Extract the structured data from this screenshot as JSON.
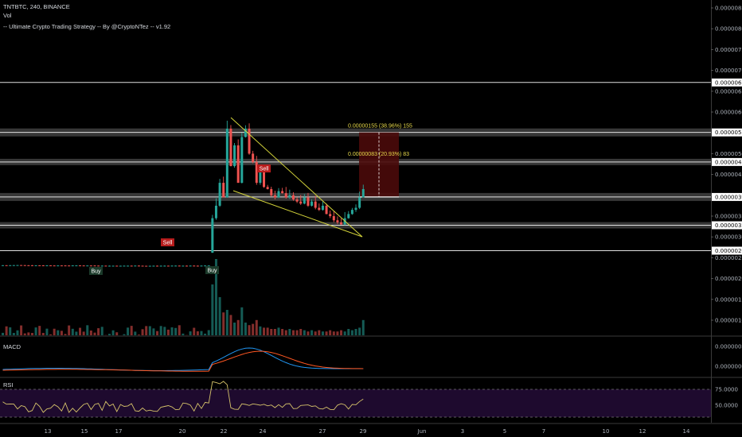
{
  "header": {
    "symbol_line": "TNTBTC, 240, BINANCE",
    "vol_label": "Vol",
    "strategy_line": "-- Ultimate Crypto Trading Strategy -- By @CryptoNTez -- v1.92"
  },
  "panels": {
    "macd_label": "MACD",
    "rsi_label": "RSI"
  },
  "colors": {
    "background": "#000000",
    "up": "#26a69a",
    "down": "#ef5350",
    "wedge": "#d4d43a",
    "macd": "#2196f3",
    "signal": "#ff5722",
    "rsi": "#d6c36a",
    "rsi_band": "#1e0a2e",
    "sr_zone": "#4a4a4a",
    "target_box": "#4a0a0a"
  },
  "chart_data": [
    {
      "type": "candlestick",
      "x_tick_labels": [
        "13",
        "15",
        "17",
        "20",
        "22",
        "24",
        "27",
        "29",
        "Jun",
        "3",
        "5",
        "7",
        "10",
        "12",
        "14"
      ],
      "y_tick_labels": [
        "0.00000850",
        "0.00000800",
        "0.00000750",
        "0.00000700",
        "0.00000650",
        "0.00000600",
        "0.00000550",
        "0.00000500",
        "0.00000450",
        "0.00000400",
        "0.00000350",
        "0.00000300",
        "0.00000250",
        "0.00000200",
        "0.00000150",
        "0.00000100"
      ],
      "ylim": [
        7.8e-07,
        8.7e-06
      ],
      "horizontal_levels": [
        {
          "label": "0.00000671",
          "value": 6.71e-06
        },
        {
          "label": "0.00000551",
          "value": 5.51e-06
        },
        {
          "label": "0.00000480",
          "value": 4.8e-06
        },
        {
          "label": "0.00000396",
          "value": 3.96e-06
        },
        {
          "label": "0.00000328",
          "value": 3.28e-06
        },
        {
          "label": "0.00000267",
          "value": 2.67e-06
        }
      ],
      "measurements": [
        {
          "text": "0.00000155 (38.96%) 155"
        },
        {
          "text": "0.00000083 (20.93%) 83"
        }
      ],
      "signals": [
        {
          "label": "Sell",
          "type": "sell"
        },
        {
          "label": "Sell",
          "type": "sell"
        },
        {
          "label": "Buy",
          "type": "buy"
        },
        {
          "label": "Buy",
          "type": "buy"
        }
      ]
    },
    {
      "type": "line",
      "name": "MACD",
      "y_tick_labels": [
        "0.00000050",
        "0.00000000"
      ]
    },
    {
      "type": "line",
      "name": "RSI",
      "y_tick_labels": [
        "75.0000",
        "50.0000"
      ]
    }
  ]
}
